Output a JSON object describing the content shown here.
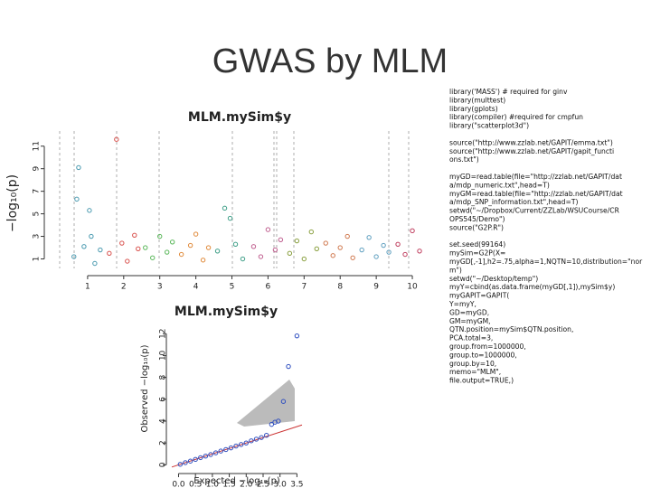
{
  "slide": {
    "title": "GWAS by MLM",
    "code": [
      [
        "library('MASS') # required for ginv",
        "library(multtest)",
        "library(gplots)",
        "library(compiler) #required for cmpfun",
        "library(\"scatterplot3d\")"
      ],
      [
        "source(\"http://www.zzlab.net/GAPIT/emma.txt\")",
        "source(\"http://www.zzlab.net/GAPIT/gapit_functi",
        "ons.txt\")"
      ],
      [
        "myGD=read.table(file=\"http://zzlab.net/GAPIT/dat",
        "a/mdp_numeric.txt\",head=T)",
        "myGM=read.table(file=\"http://zzlab.net/GAPIT/dat",
        "a/mdp_SNP_information.txt\",head=T)",
        "setwd(\"~/Dropbox/Current/ZZLab/WSUCourse/CR",
        "OPS545/Demo\")",
        "source(\"G2P.R\")"
      ],
      [
        "set.seed(99164)",
        "mySim=G2P(X=",
        "myGD[,-1],h2=.75,alpha=1,NQTN=10,distribution=\"nor",
        "m\")",
        "setwd(\"~/Desktop/temp\")",
        "myY=cbind(as.data.frame(myGD[,1]),mySim$y)",
        "myGAPIT=GAPIT(",
        "Y=myY,",
        "GD=myGD,",
        "GM=myGM,",
        "QTN.position=mySim$QTN.position,",
        "PCA.total=3,",
        "group.from=1000000,",
        "group.to=1000000,",
        "group.by=10,",
        "memo=\"MLM\",",
        "file.output=TRUE,)"
      ]
    ]
  },
  "chart_data": [
    {
      "type": "scatter",
      "title": "MLM.mySim$y",
      "y_label": "−log₁₀(p)",
      "xlim": [
        -0.05,
        10.35
      ],
      "ylim": [
        0,
        12.5
      ],
      "xticks": [
        1,
        2,
        3,
        4,
        5,
        6,
        7,
        8,
        9,
        10
      ],
      "yticks": [
        1,
        3,
        5,
        7,
        9,
        11
      ],
      "series": [
        {
          "color": "#4a9ab0",
          "x": [
            0.62,
            0.75,
            0.9,
            1.05,
            1.2,
            1.35,
            0.7,
            1.1
          ],
          "values": [
            1.2,
            9.1,
            2.1,
            5.3,
            0.6,
            1.8,
            6.3,
            3.0
          ]
        },
        {
          "color": "#d9534f",
          "x": [
            1.6,
            1.8,
            1.95,
            2.1,
            2.3,
            2.4
          ],
          "values": [
            1.5,
            11.6,
            2.4,
            0.8,
            3.1,
            1.9
          ]
        },
        {
          "color": "#5cb85c",
          "x": [
            2.6,
            2.8,
            3.0,
            3.2,
            3.35
          ],
          "values": [
            2.0,
            1.1,
            3.0,
            1.6,
            2.5
          ]
        },
        {
          "color": "#e08a3a",
          "x": [
            3.6,
            3.85,
            4.0,
            4.2,
            4.35
          ],
          "values": [
            1.4,
            2.2,
            3.2,
            0.9,
            2.0
          ]
        },
        {
          "color": "#3f9f88",
          "x": [
            4.6,
            4.8,
            4.95,
            5.1,
            5.3
          ],
          "values": [
            1.7,
            5.5,
            4.6,
            2.3,
            1.0
          ]
        },
        {
          "color": "#c06090",
          "x": [
            5.6,
            5.8,
            6.0,
            6.2,
            6.35
          ],
          "values": [
            2.1,
            1.2,
            3.6,
            1.8,
            2.7
          ]
        },
        {
          "color": "#8aa040",
          "x": [
            6.6,
            6.8,
            7.0,
            7.2,
            7.35
          ],
          "values": [
            1.5,
            2.6,
            1.0,
            3.4,
            1.9
          ]
        },
        {
          "color": "#d07a50",
          "x": [
            7.6,
            7.8,
            8.0,
            8.2,
            8.35
          ],
          "values": [
            2.4,
            1.3,
            2.0,
            3.0,
            1.1
          ]
        },
        {
          "color": "#60a0c0",
          "x": [
            8.6,
            8.8,
            9.0,
            9.2,
            9.35
          ],
          "values": [
            1.8,
            2.9,
            1.2,
            2.2,
            1.6
          ]
        },
        {
          "color": "#c04060",
          "x": [
            9.6,
            9.8,
            10.0,
            10.2
          ],
          "values": [
            2.3,
            1.4,
            3.5,
            1.7
          ]
        }
      ]
    },
    {
      "type": "scatter",
      "title": "MLM.mySim$y",
      "x_label": "Expected −log₁₀(p)",
      "y_label": "Observed −log₁₀(p)",
      "xlim": [
        -0.2,
        3.65
      ],
      "ylim": [
        -0.3,
        12.6
      ],
      "xticks": [
        {
          "value": 0,
          "label": "0.0"
        },
        {
          "value": 0.5,
          "label": "0.5"
        },
        {
          "value": 1,
          "label": "1.0"
        },
        {
          "value": 1.5,
          "label": "1.5"
        },
        {
          "value": 2,
          "label": "2.0"
        },
        {
          "value": 2.5,
          "label": "2.5"
        },
        {
          "value": 3,
          "label": "3.0"
        },
        {
          "value": 3.5,
          "label": "3.5"
        }
      ],
      "yticks": [
        0,
        2,
        4,
        6,
        8,
        10,
        12
      ],
      "series": [
        {
          "color": "#2f4fc0",
          "x": [
            0.05,
            0.2,
            0.35,
            0.5,
            0.65,
            0.8,
            0.95,
            1.1,
            1.25,
            1.4,
            1.55,
            1.7,
            1.85,
            2.0,
            2.15,
            2.3,
            2.45,
            2.6,
            2.75,
            2.85,
            2.95,
            3.1,
            3.25,
            3.5
          ],
          "values": [
            0.05,
            0.2,
            0.34,
            0.5,
            0.66,
            0.8,
            0.94,
            1.1,
            1.26,
            1.4,
            1.55,
            1.72,
            1.86,
            2.0,
            2.2,
            2.35,
            2.5,
            2.7,
            3.7,
            3.9,
            4.0,
            5.8,
            9.0,
            11.8
          ]
        }
      ]
    }
  ]
}
